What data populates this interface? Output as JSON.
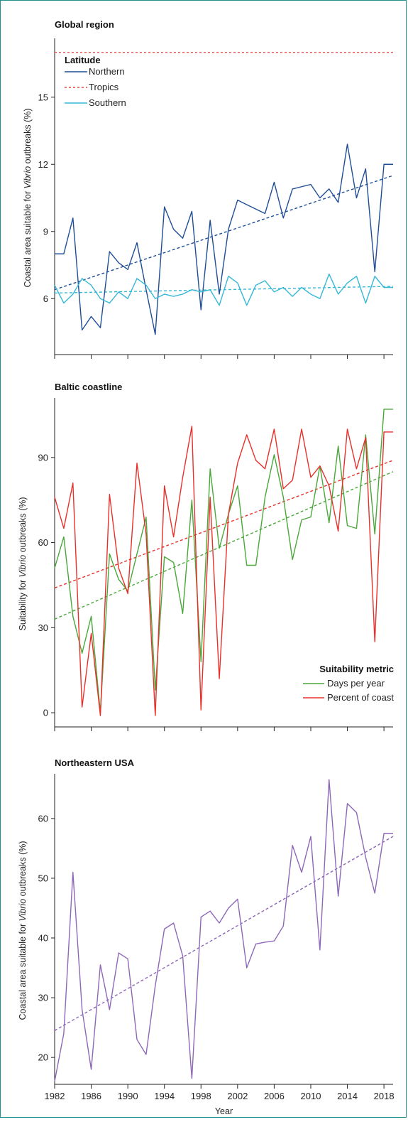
{
  "chart_data": [
    {
      "type": "line",
      "title": "Global region",
      "ylabel": "Coastal area suitable for Vibrio outbreaks (%)",
      "ylabel_parts": [
        "Coastal area suitable for ",
        "Vibrio",
        " outbreaks (%)"
      ],
      "xlim": [
        1982,
        2019
      ],
      "ylim": [
        3.5,
        17.5
      ],
      "yticks": [
        6,
        9,
        12,
        15
      ],
      "legend": {
        "title": "Latitude",
        "position": "top-left"
      },
      "x": [
        1982,
        1983,
        1984,
        1985,
        1986,
        1987,
        1988,
        1989,
        1990,
        1991,
        1992,
        1993,
        1994,
        1995,
        1996,
        1997,
        1998,
        1999,
        2000,
        2001,
        2002,
        2003,
        2004,
        2005,
        2006,
        2007,
        2008,
        2009,
        2010,
        2011,
        2012,
        2013,
        2014,
        2015,
        2016,
        2017,
        2018,
        2019
      ],
      "series": [
        {
          "name": "Northern",
          "color": "#1f4e96",
          "style": "solid",
          "values": [
            8.0,
            8.0,
            9.6,
            4.6,
            5.2,
            4.7,
            8.1,
            7.6,
            7.3,
            8.5,
            6.4,
            4.4,
            10.1,
            9.1,
            8.7,
            9.9,
            5.5,
            9.5,
            6.2,
            9.1,
            10.4,
            10.2,
            10.0,
            9.8,
            11.2,
            9.6,
            10.9,
            11.0,
            11.1,
            10.5,
            10.9,
            10.3,
            12.9,
            10.5,
            11.8,
            7.2,
            12.0,
            12.0
          ]
        },
        {
          "name": "Tropics",
          "color": "#e8423f",
          "style": "dotted",
          "trend_only": true,
          "values": [
            17.0,
            17.0,
            17.0,
            17.0,
            17.0,
            17.0,
            17.0,
            17.0,
            17.0,
            17.0,
            17.0,
            17.0,
            17.0,
            17.0,
            17.0,
            17.0,
            17.0,
            17.0,
            17.0,
            17.0,
            17.0,
            17.0,
            17.0,
            17.0,
            17.0,
            17.0,
            17.0,
            17.0,
            17.0,
            17.0,
            17.0,
            17.0,
            17.0,
            17.0,
            17.0,
            17.0,
            17.0,
            17.0
          ]
        },
        {
          "name": "Southern",
          "color": "#36b8d6",
          "style": "solid",
          "values": [
            6.6,
            5.8,
            6.2,
            6.9,
            6.6,
            6.0,
            5.8,
            6.3,
            6.0,
            6.9,
            6.6,
            6.0,
            6.2,
            6.1,
            6.2,
            6.4,
            6.3,
            6.4,
            5.7,
            7.0,
            6.7,
            5.7,
            6.6,
            6.8,
            6.3,
            6.5,
            6.1,
            6.5,
            6.2,
            6.0,
            7.1,
            6.2,
            6.7,
            7.0,
            5.8,
            7.0,
            6.5,
            6.5
          ]
        }
      ],
      "trends": [
        {
          "series": "Northern",
          "color": "#1f4e96",
          "from": [
            1982,
            6.4
          ],
          "to": [
            2019,
            11.5
          ]
        },
        {
          "series": "Southern",
          "color": "#36b8d6",
          "from": [
            1982,
            6.25
          ],
          "to": [
            2019,
            6.55
          ]
        }
      ]
    },
    {
      "type": "line",
      "title": "Baltic coastline",
      "ylabel": "Suitability for Vibrio outbreaks (%)",
      "ylabel_parts": [
        "Suitability for ",
        "Vibrio",
        " outbreaks (%)"
      ],
      "xlim": [
        1982,
        2019
      ],
      "ylim": [
        -5,
        110
      ],
      "yticks": [
        0,
        30,
        60,
        90
      ],
      "legend": {
        "title": "Suitability metric",
        "position": "bottom-right"
      },
      "x": [
        1982,
        1983,
        1984,
        1985,
        1986,
        1987,
        1988,
        1989,
        1990,
        1991,
        1992,
        1993,
        1994,
        1995,
        1996,
        1997,
        1998,
        1999,
        2000,
        2001,
        2002,
        2003,
        2004,
        2005,
        2006,
        2007,
        2008,
        2009,
        2010,
        2011,
        2012,
        2013,
        2014,
        2015,
        2016,
        2017,
        2018,
        2019
      ],
      "series": [
        {
          "name": "Days per year",
          "color": "#4aa83a",
          "style": "solid",
          "values": [
            51,
            62,
            34,
            21,
            34,
            0,
            56,
            47,
            43,
            56,
            69,
            8,
            55,
            53,
            35,
            75,
            18,
            86,
            58,
            70,
            80,
            52,
            52,
            76,
            91,
            76,
            54,
            68,
            69,
            87,
            67,
            94,
            66,
            65,
            98,
            63,
            107,
            107
          ]
        },
        {
          "name": "Percent of coast",
          "color": "#e8302a",
          "style": "solid",
          "values": [
            76,
            65,
            81,
            2,
            28,
            -1,
            77,
            51,
            42,
            88,
            63,
            -1,
            80,
            62,
            83,
            101,
            1,
            76,
            12,
            70,
            88,
            98,
            89,
            86,
            100,
            79,
            82,
            100,
            83,
            87,
            80,
            64,
            100,
            86,
            97,
            25,
            99,
            99
          ]
        }
      ],
      "trends": [
        {
          "series": "Days per year",
          "color": "#4aa83a",
          "from": [
            1982,
            33
          ],
          "to": [
            2019,
            85
          ]
        },
        {
          "series": "Percent of coast",
          "color": "#e8302a",
          "from": [
            1982,
            44
          ],
          "to": [
            2019,
            89
          ]
        }
      ]
    },
    {
      "type": "line",
      "title": "Northeastern USA",
      "ylabel": "Coastal area suitable for Vibrio outbreaks (%)",
      "ylabel_parts": [
        "Coastal area suitable for ",
        "Vibrio",
        " outbreaks (%)"
      ],
      "xlabel": "Year",
      "xlim": [
        1982,
        2019
      ],
      "ylim": [
        15.5,
        67
      ],
      "yticks": [
        20,
        30,
        40,
        50,
        60
      ],
      "xticks": [
        1982,
        1986,
        1990,
        1994,
        1998,
        2002,
        2006,
        2010,
        2014,
        2018
      ],
      "x": [
        1982,
        1983,
        1984,
        1985,
        1986,
        1987,
        1988,
        1989,
        1990,
        1991,
        1992,
        1993,
        1994,
        1995,
        1996,
        1997,
        1998,
        1999,
        2000,
        2001,
        2002,
        2003,
        2004,
        2005,
        2006,
        2007,
        2008,
        2009,
        2010,
        2011,
        2012,
        2013,
        2014,
        2015,
        2016,
        2017,
        2018,
        2019
      ],
      "series": [
        {
          "name": "",
          "color": "#8e68b8",
          "style": "solid",
          "values": [
            16,
            24,
            51,
            28,
            18,
            35.5,
            28,
            37.5,
            36.5,
            23,
            20.5,
            32,
            41.5,
            42.5,
            37,
            16.5,
            43.5,
            44.5,
            42.5,
            45,
            46.5,
            35,
            39,
            39.3,
            39.5,
            42,
            55.5,
            51,
            57,
            38,
            66.5,
            47,
            62.5,
            61,
            53.5,
            47.5,
            57.5,
            57.5
          ]
        }
      ],
      "trends": [
        {
          "series": "Northeastern USA",
          "color": "#8e68b8",
          "from": [
            1982,
            24.5
          ],
          "to": [
            2019,
            57
          ]
        }
      ]
    }
  ]
}
